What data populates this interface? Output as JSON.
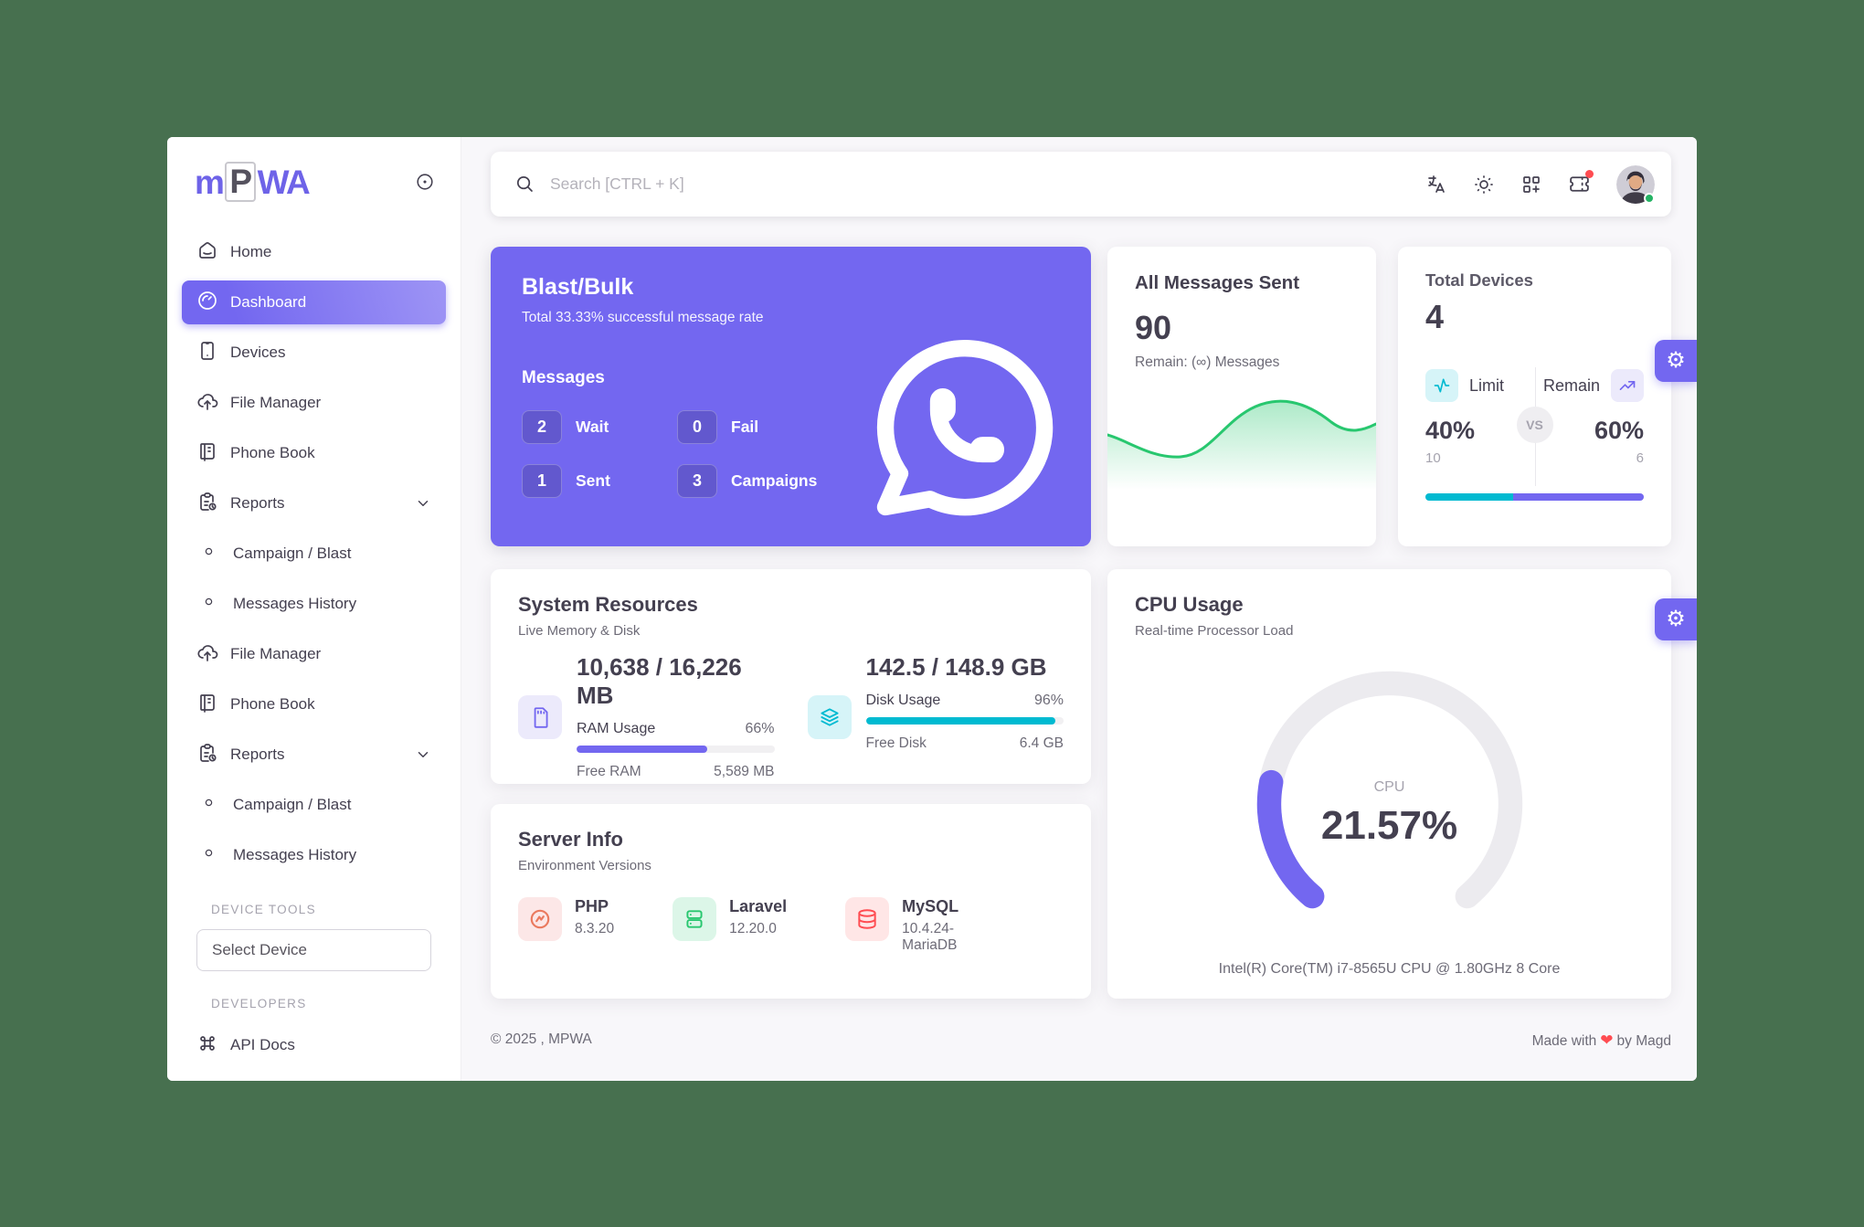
{
  "app": {
    "logo": {
      "m": "m",
      "p": "P",
      "wa": "WA"
    }
  },
  "colors": {
    "primary": "#7367F0",
    "info_teal": "#00BAD1",
    "success_green": "#28C76F",
    "danger_red": "#FF4C51",
    "page_bg": "#F8F7FA",
    "desktop_bg": "#47704F"
  },
  "sidebar": {
    "items": [
      {
        "label": "Home",
        "icon": "home-icon",
        "active": false
      },
      {
        "label": "Dashboard",
        "icon": "gauge-icon",
        "active": true
      },
      {
        "label": "Devices",
        "icon": "smartphone-icon",
        "active": false
      },
      {
        "label": "File Manager",
        "icon": "cloud-upload-icon",
        "active": false
      },
      {
        "label": "Phone Book",
        "icon": "notebook-icon",
        "active": false
      },
      {
        "label": "Reports",
        "icon": "report-icon",
        "active": false,
        "chevron": true
      },
      {
        "label": "Campaign / Blast",
        "icon": "circle-icon",
        "active": false,
        "sub": true
      },
      {
        "label": "Messages History",
        "icon": "circle-icon",
        "active": false,
        "sub": true
      },
      {
        "label": "File Manager",
        "icon": "cloud-upload-icon",
        "active": false
      },
      {
        "label": "Phone Book",
        "icon": "notebook-icon",
        "active": false
      },
      {
        "label": "Reports",
        "icon": "report-icon",
        "active": false,
        "chevron": true
      },
      {
        "label": "Campaign / Blast",
        "icon": "circle-icon",
        "active": false,
        "sub": true
      },
      {
        "label": "Messages History",
        "icon": "circle-icon",
        "active": false,
        "sub": true
      }
    ],
    "device_tools_label": "DEVICE TOOLS",
    "select_device_placeholder": "Select Device",
    "developers_label": "DEVELOPERS",
    "api_docs_label": "API Docs"
  },
  "topbar": {
    "search_placeholder": "Search [CTRL + K]",
    "icons": [
      "language-icon",
      "sun-icon",
      "grid-add-icon",
      "ticket-icon",
      "avatar"
    ]
  },
  "cards": {
    "blast": {
      "title": "Blast/Bulk",
      "subtitle": "Total 33.33% successful message rate",
      "messages_label": "Messages",
      "stats": [
        {
          "value": "2",
          "label": "Wait"
        },
        {
          "value": "0",
          "label": "Fail"
        },
        {
          "value": "1",
          "label": "Sent"
        },
        {
          "value": "3",
          "label": "Campaigns"
        }
      ]
    },
    "messages_sent": {
      "title": "All Messages Sent",
      "count": "90",
      "remain": "Remain: (∞) Messages"
    },
    "total_devices": {
      "title": "Total Devices",
      "count": "4",
      "limit_label": "Limit",
      "remain_label": "Remain",
      "vs_label": "VS",
      "left_percent": "40%",
      "left_value": "10",
      "right_percent": "60%",
      "right_value": "6",
      "bar": {
        "teal_percent": 40,
        "purple_percent": 60
      }
    },
    "system_resources": {
      "title": "System Resources",
      "subtitle": "Live Memory & Disk",
      "ram": {
        "value": "10,638 / 16,226 MB",
        "usage_label": "RAM Usage",
        "usage_percent": 66,
        "usage_percent_label": "66%",
        "free_label": "Free RAM",
        "free_value": "5,589 MB"
      },
      "disk": {
        "value": "142.5 / 148.9 GB",
        "usage_label": "Disk Usage",
        "usage_percent": 96,
        "usage_percent_label": "96%",
        "free_label": "Free Disk",
        "free_value": "6.4 GB"
      }
    },
    "cpu": {
      "title": "CPU Usage",
      "subtitle": "Real-time Processor Load",
      "gauge_label": "CPU",
      "gauge_value": "21.57%",
      "gauge_percent": 21.57,
      "caption": "Intel(R) Core(TM) i7-8565U CPU @ 1.80GHz 8 Core"
    },
    "server_info": {
      "title": "Server Info",
      "subtitle": "Environment Versions",
      "items": [
        {
          "name": "PHP",
          "version": "8.3.20",
          "icon": "php-icon"
        },
        {
          "name": "Laravel",
          "version": "12.20.0",
          "icon": "server-icon"
        },
        {
          "name": "MySQL",
          "version": "10.4.24-MariaDB",
          "icon": "database-icon"
        }
      ]
    }
  },
  "footer": {
    "copyright": "© 2025 , MPWA",
    "made_prefix": "Made with",
    "heart": "❤",
    "made_suffix": "by Magd"
  }
}
